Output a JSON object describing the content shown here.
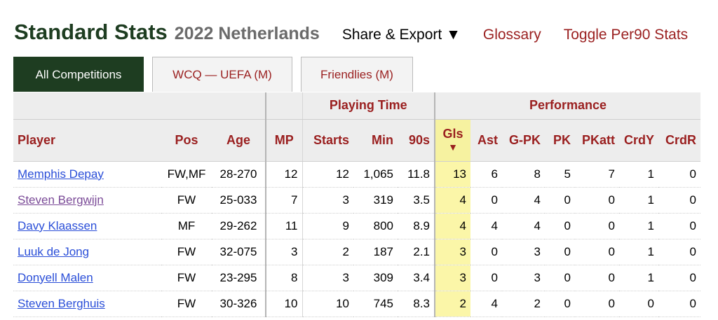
{
  "header": {
    "title": "Standard Stats",
    "subtitle": "2022 Netherlands",
    "share_label": "Share & Export ▼",
    "glossary_label": "Glossary",
    "toggle_label": "Toggle Per90 Stats"
  },
  "tabs": [
    {
      "label": "All Competitions",
      "active": true
    },
    {
      "label": "WCQ — UEFA (M)",
      "active": false
    },
    {
      "label": "Friendlies (M)",
      "active": false
    }
  ],
  "table": {
    "groups": {
      "playing_time": "Playing Time",
      "performance": "Performance"
    },
    "columns": {
      "player": "Player",
      "pos": "Pos",
      "age": "Age",
      "mp": "MP",
      "starts": "Starts",
      "min": "Min",
      "nineties": "90s",
      "gls": "Gls",
      "sort_arrow": "▼",
      "ast": "Ast",
      "gpk": "G-PK",
      "pk": "PK",
      "pkatt": "PKatt",
      "crdy": "CrdY",
      "crdr": "CrdR"
    },
    "rows": [
      {
        "player": "Memphis Depay",
        "pos": "FW,MF",
        "age": "28-270",
        "mp": "12",
        "starts": "12",
        "min": "1,065",
        "nineties": "11.8",
        "gls": "13",
        "ast": "6",
        "gpk": "8",
        "pk": "5",
        "pkatt": "7",
        "crdy": "1",
        "crdr": "0"
      },
      {
        "player": "Steven Bergwijn",
        "pos": "FW",
        "age": "25-033",
        "mp": "7",
        "starts": "3",
        "min": "319",
        "nineties": "3.5",
        "gls": "4",
        "ast": "0",
        "gpk": "4",
        "pk": "0",
        "pkatt": "0",
        "crdy": "1",
        "crdr": "0"
      },
      {
        "player": "Davy Klaassen",
        "pos": "MF",
        "age": "29-262",
        "mp": "11",
        "starts": "9",
        "min": "800",
        "nineties": "8.9",
        "gls": "4",
        "ast": "4",
        "gpk": "4",
        "pk": "0",
        "pkatt": "0",
        "crdy": "1",
        "crdr": "0"
      },
      {
        "player": "Luuk de Jong",
        "pos": "FW",
        "age": "32-075",
        "mp": "3",
        "starts": "2",
        "min": "187",
        "nineties": "2.1",
        "gls": "3",
        "ast": "0",
        "gpk": "3",
        "pk": "0",
        "pkatt": "0",
        "crdy": "1",
        "crdr": "0"
      },
      {
        "player": "Donyell Malen",
        "pos": "FW",
        "age": "23-295",
        "mp": "8",
        "starts": "3",
        "min": "309",
        "nineties": "3.4",
        "gls": "3",
        "ast": "0",
        "gpk": "3",
        "pk": "0",
        "pkatt": "0",
        "crdy": "1",
        "crdr": "0"
      },
      {
        "player": "Steven Berghuis",
        "pos": "FW",
        "age": "30-326",
        "mp": "10",
        "starts": "10",
        "min": "745",
        "nineties": "8.3",
        "gls": "2",
        "ast": "4",
        "gpk": "2",
        "pk": "0",
        "pkatt": "0",
        "crdy": "0",
        "crdr": "0"
      }
    ]
  },
  "colors": {
    "title": "#1e3d21",
    "link_red": "#9a1f1f",
    "player_link": "#2a4ed8",
    "highlight": "#fbf6a8"
  }
}
